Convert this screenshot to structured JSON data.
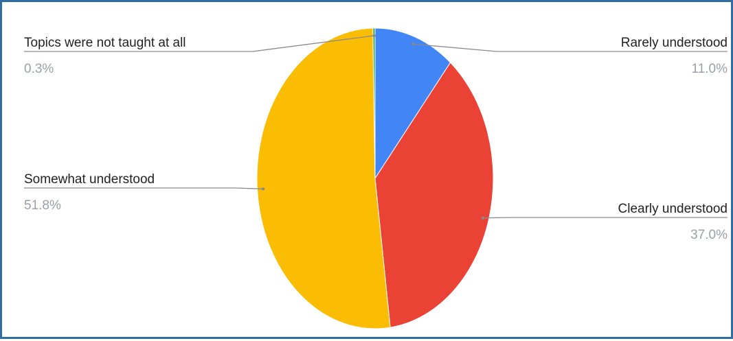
{
  "chart_data": {
    "type": "pie",
    "slices": [
      {
        "label": "Rarely understood",
        "value": 11.0,
        "value_label": "11.0%",
        "color": "#4285f4"
      },
      {
        "label": "Clearly understood",
        "value": 37.0,
        "value_label": "37.0%",
        "color": "#ea4335"
      },
      {
        "label": "Somewhat understood",
        "value": 51.8,
        "value_label": "51.8%",
        "color": "#fbbc04"
      },
      {
        "label": "Topics were not taught at all",
        "value": 0.3,
        "value_label": "0.3%",
        "color": "#34a853"
      }
    ],
    "start_angle": "12 o'clock",
    "direction": "clockwise",
    "legend": "none",
    "labels": "outside with leader lines"
  }
}
